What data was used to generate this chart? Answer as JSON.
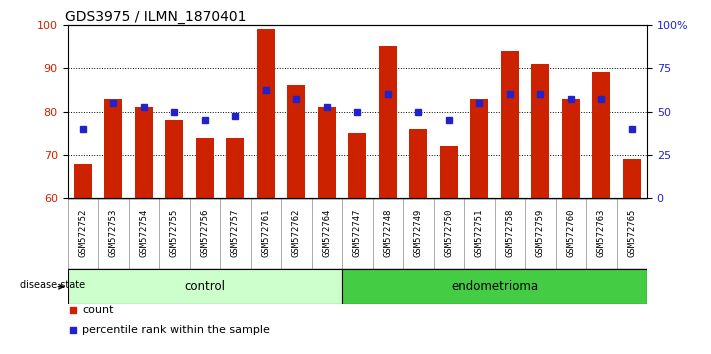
{
  "title": "GDS3975 / ILMN_1870401",
  "samples": [
    "GSM572752",
    "GSM572753",
    "GSM572754",
    "GSM572755",
    "GSM572756",
    "GSM572757",
    "GSM572761",
    "GSM572762",
    "GSM572764",
    "GSM572747",
    "GSM572748",
    "GSM572749",
    "GSM572750",
    "GSM572751",
    "GSM572758",
    "GSM572759",
    "GSM572760",
    "GSM572763",
    "GSM572765"
  ],
  "counts": [
    68,
    83,
    81,
    78,
    74,
    74,
    99,
    86,
    81,
    75,
    95,
    76,
    72,
    83,
    94,
    91,
    83,
    89,
    69
  ],
  "percentile_rank_values": [
    76,
    82,
    81,
    80,
    78,
    79,
    85,
    83,
    81,
    80,
    84,
    80,
    78,
    82,
    84,
    84,
    83,
    83,
    76
  ],
  "control_count": 9,
  "endometrioma_count": 10,
  "left_ylim": [
    60,
    100
  ],
  "right_ylim": [
    0,
    100
  ],
  "right_yticks": [
    0,
    25,
    50,
    75,
    100
  ],
  "right_yticklabels": [
    "0",
    "25",
    "50",
    "75",
    "100%"
  ],
  "left_yticks": [
    60,
    70,
    80,
    90,
    100
  ],
  "bar_color": "#cc2200",
  "dot_color": "#2222cc",
  "control_bg": "#ccffcc",
  "endometrioma_bg": "#44cc44",
  "title_fontsize": 10,
  "tick_label_fontsize": 6.5,
  "axis_label_color_left": "#cc2200",
  "axis_label_color_right": "#2222cc",
  "grid_yticks": [
    70,
    80,
    90
  ],
  "disease_state_label": "disease state",
  "control_label": "control",
  "endometrioma_label": "endometrioma",
  "legend_count_label": "count",
  "legend_pct_label": "percentile rank within the sample",
  "tick_bg_color": "#c8c8c8",
  "tick_border_color": "#888888"
}
